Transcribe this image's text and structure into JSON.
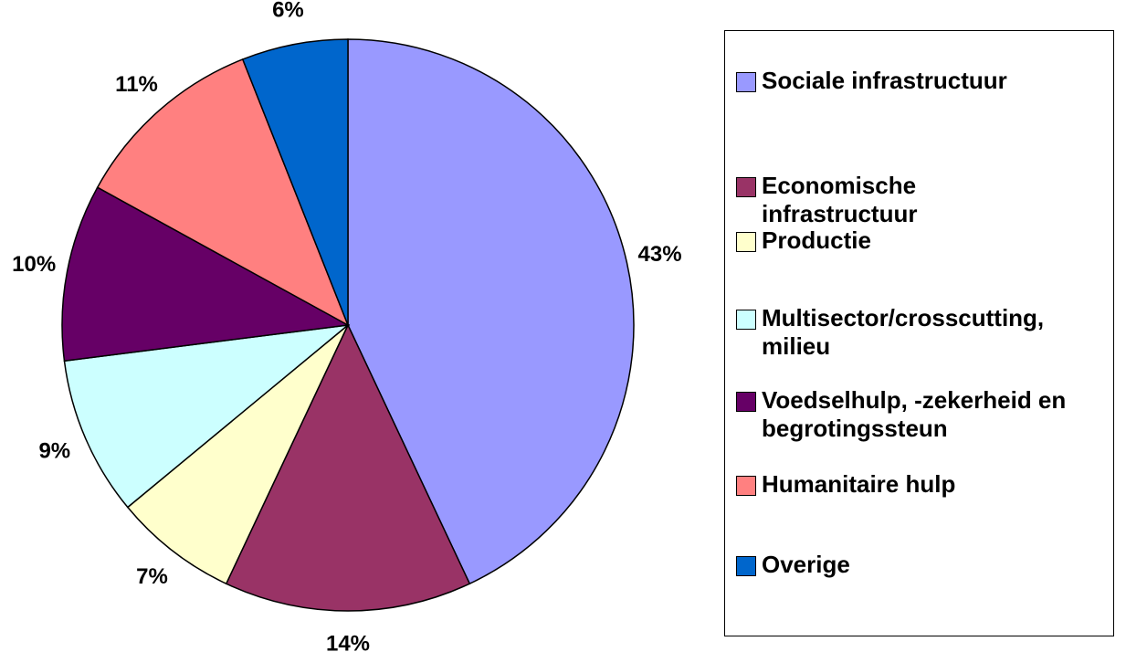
{
  "chart_data": {
    "type": "pie",
    "categories": [
      "Sociale infrastructuur",
      "Economische infrastructuur",
      "Productie",
      "Multisector/crosscutting, milieu",
      "Voedselhulp, -zekerheid en begrotingssteun",
      "Humanitaire hulp",
      "Overige"
    ],
    "values": [
      43,
      14,
      7,
      9,
      10,
      11,
      6
    ],
    "value_labels": [
      "43%",
      "14%",
      "7%",
      "9%",
      "10%",
      "11%",
      "6%"
    ],
    "colors": [
      "#9999ff",
      "#993366",
      "#ffffcc",
      "#ccffff",
      "#660066",
      "#ff8080",
      "#0066cc"
    ],
    "legend": "right"
  }
}
